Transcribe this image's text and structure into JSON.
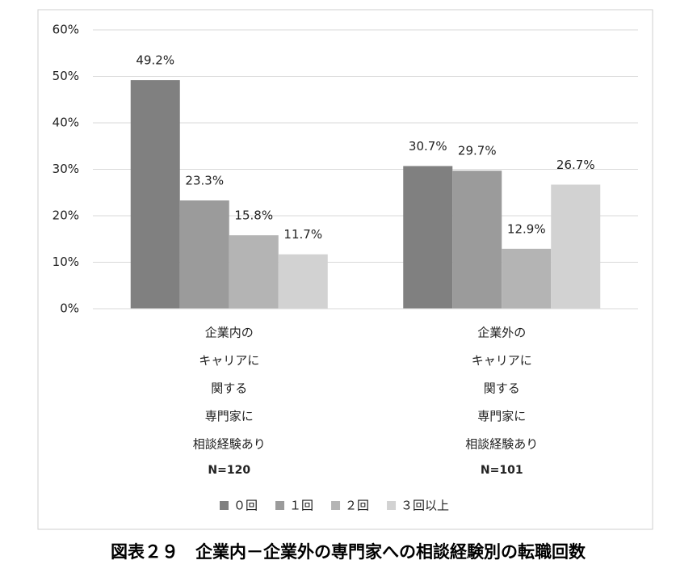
{
  "chart_data": {
    "type": "bar",
    "caption": "図表２９　企業内－企業外の専門家への相談経験別の転職回数",
    "categories": [
      [
        "企業内の",
        "キャリアに",
        "関する",
        "専門家に",
        "相談経験あり",
        "N=120"
      ],
      [
        "企業外の",
        "キャリアに",
        "関する",
        "専門家に",
        "相談経験あり",
        "N=101"
      ]
    ],
    "series": [
      {
        "name": "０回",
        "color": "#808080",
        "values": [
          49.2,
          30.7
        ],
        "value_labels": [
          "49.2%",
          "30.7%"
        ]
      },
      {
        "name": "１回",
        "color": "#9b9b9b",
        "values": [
          23.3,
          29.7
        ],
        "value_labels": [
          "23.3%",
          "29.7%"
        ]
      },
      {
        "name": "２回",
        "color": "#b4b4b4",
        "values": [
          15.8,
          12.9
        ],
        "value_labels": [
          "15.8%",
          "12.9%"
        ]
      },
      {
        "name": "３回以上",
        "color": "#d2d2d2",
        "values": [
          11.7,
          26.7
        ],
        "value_labels": [
          "11.7%",
          "26.7%"
        ]
      }
    ],
    "ylim": [
      0,
      60
    ],
    "yticks": [
      {
        "value": 0,
        "label": "0%"
      },
      {
        "value": 10,
        "label": "10%"
      },
      {
        "value": 20,
        "label": "20%"
      },
      {
        "value": 30,
        "label": "30%"
      },
      {
        "value": 40,
        "label": "40%"
      },
      {
        "value": 50,
        "label": "50%"
      },
      {
        "value": 60,
        "label": "60%"
      }
    ],
    "grid": true,
    "legend": "bottom"
  }
}
